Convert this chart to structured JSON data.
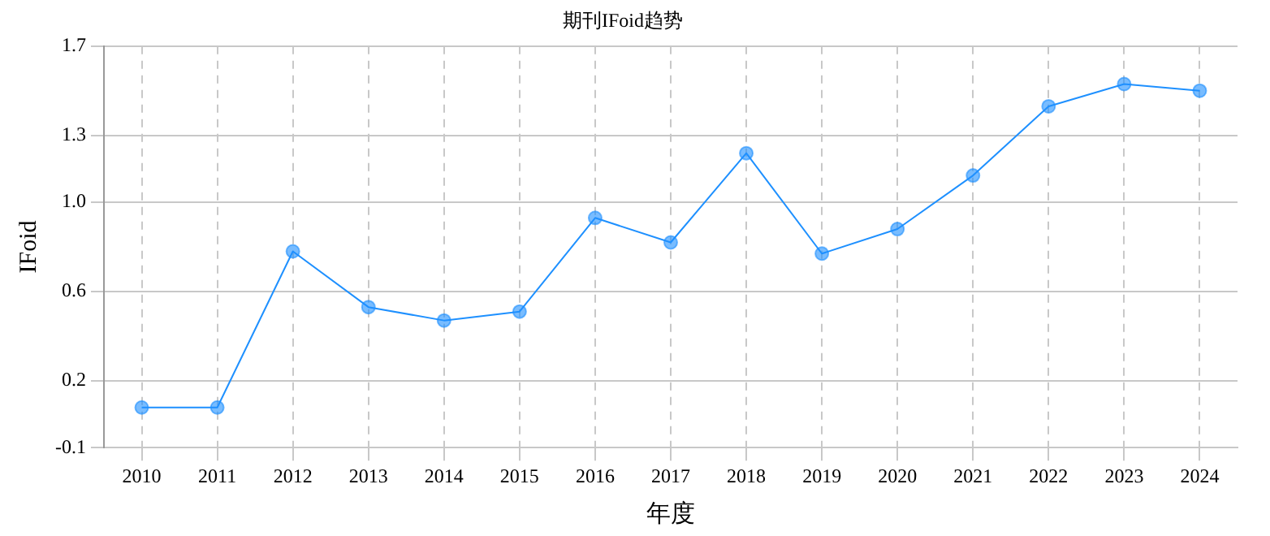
{
  "chart_data": {
    "type": "line",
    "title": "期刊IFoid趋势",
    "xlabel": "年度",
    "ylabel": "IFoid",
    "categories": [
      "2010",
      "2011",
      "2012",
      "2013",
      "2014",
      "2015",
      "2016",
      "2017",
      "2018",
      "2019",
      "2020",
      "2021",
      "2022",
      "2023",
      "2024"
    ],
    "series": [
      {
        "color": "#1e90ff",
        "values": [
          0.08,
          0.08,
          0.78,
          0.53,
          0.47,
          0.51,
          0.93,
          0.82,
          1.22,
          0.77,
          0.88,
          1.12,
          1.43,
          1.53,
          1.5
        ]
      }
    ],
    "ylim": [
      -0.1,
      1.7
    ],
    "yticks": [
      -0.1,
      0.2,
      0.6,
      {
        "value": 1.0,
        "label": "1.0"
      },
      1.3,
      1.7
    ],
    "grid": true,
    "legend": false,
    "marker": "circle",
    "line_style": "solid"
  }
}
